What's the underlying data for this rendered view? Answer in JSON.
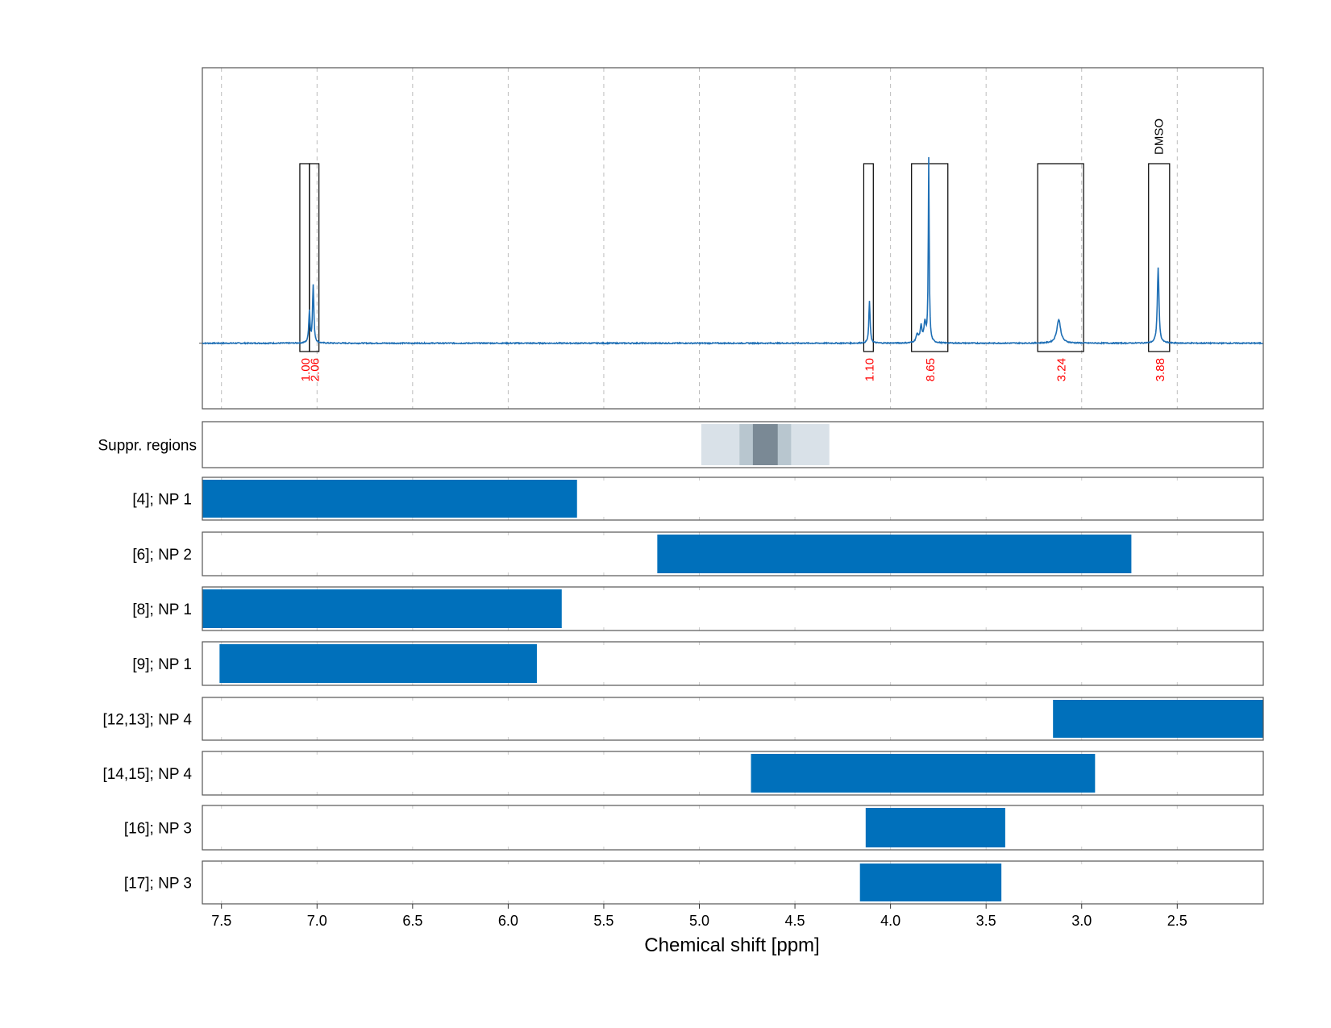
{
  "chart_data": {
    "type": "nmr-spectrum-with-range-bars",
    "x_axis": {
      "label": "Chemical shift [ppm]",
      "reversed": true,
      "range": [
        7.6,
        2.05
      ],
      "ticks": [
        7.5,
        7.0,
        6.5,
        6.0,
        5.5,
        5.0,
        4.5,
        4.0,
        3.5,
        3.0,
        2.5
      ],
      "tick_labels": [
        "7.5",
        "7.0",
        "6.5",
        "6.0",
        "5.5",
        "5.0",
        "4.5",
        "4.0",
        "3.5",
        "3.0",
        "2.5"
      ],
      "grid": "dashed-vertical"
    },
    "spectrum": {
      "color": "#1f6fb5",
      "baseline": 0,
      "ylim": [
        -0.25,
        1.05
      ],
      "peaks": [
        {
          "ppm": 7.04,
          "height": 0.12,
          "width": 0.004
        },
        {
          "ppm": 7.02,
          "height": 0.22,
          "width": 0.004
        },
        {
          "ppm": 4.11,
          "height": 0.16,
          "width": 0.004
        },
        {
          "ppm": 3.86,
          "height": 0.03,
          "width": 0.008
        },
        {
          "ppm": 3.84,
          "height": 0.06,
          "width": 0.006
        },
        {
          "ppm": 3.82,
          "height": 0.07,
          "width": 0.006
        },
        {
          "ppm": 3.8,
          "height": 0.7,
          "width": 0.003
        },
        {
          "ppm": 3.12,
          "height": 0.09,
          "width": 0.012
        },
        {
          "ppm": 2.6,
          "height": 0.29,
          "width": 0.005
        }
      ],
      "integration_regions": [
        {
          "from": 7.09,
          "to": 7.04,
          "label": "1.00"
        },
        {
          "from": 7.04,
          "to": 6.99,
          "label": "2.06"
        },
        {
          "from": 4.14,
          "to": 4.09,
          "label": "1.10"
        },
        {
          "from": 3.89,
          "to": 3.7,
          "label": "8.65"
        },
        {
          "from": 3.23,
          "to": 2.99,
          "label": "3.24"
        },
        {
          "from": 2.65,
          "to": 2.54,
          "label": "3.88"
        }
      ],
      "annotations": [
        {
          "ppm": 2.6,
          "text": "DMSO"
        }
      ],
      "integral_label_color": "#ff0000"
    },
    "suppressed_regions": {
      "label": "Suppr. regions",
      "bands": [
        {
          "from": 4.99,
          "to": 4.32,
          "shade": "#d9e1e8"
        },
        {
          "from": 4.79,
          "to": 4.52,
          "shade": "#b8c6cf"
        },
        {
          "from": 4.72,
          "to": 4.59,
          "shade": "#7a8995"
        }
      ]
    },
    "series": [
      {
        "name": "[4]; NP 1",
        "from": 7.6,
        "to": 5.64
      },
      {
        "name": "[6]; NP 2",
        "from": 5.22,
        "to": 2.74
      },
      {
        "name": "[8]; NP 1",
        "from": 7.6,
        "to": 5.72
      },
      {
        "name": "[9]; NP 1",
        "from": 7.51,
        "to": 5.85
      },
      {
        "name": "[12,13]; NP 4",
        "from": 3.15,
        "to": 2.05
      },
      {
        "name": "[14,15]; NP 4",
        "from": 4.73,
        "to": 2.93
      },
      {
        "name": "[16]; NP 3",
        "from": 4.13,
        "to": 3.4
      },
      {
        "name": "[17]; NP 3",
        "from": 4.16,
        "to": 3.42
      }
    ],
    "bar_color": "#0070bb"
  }
}
